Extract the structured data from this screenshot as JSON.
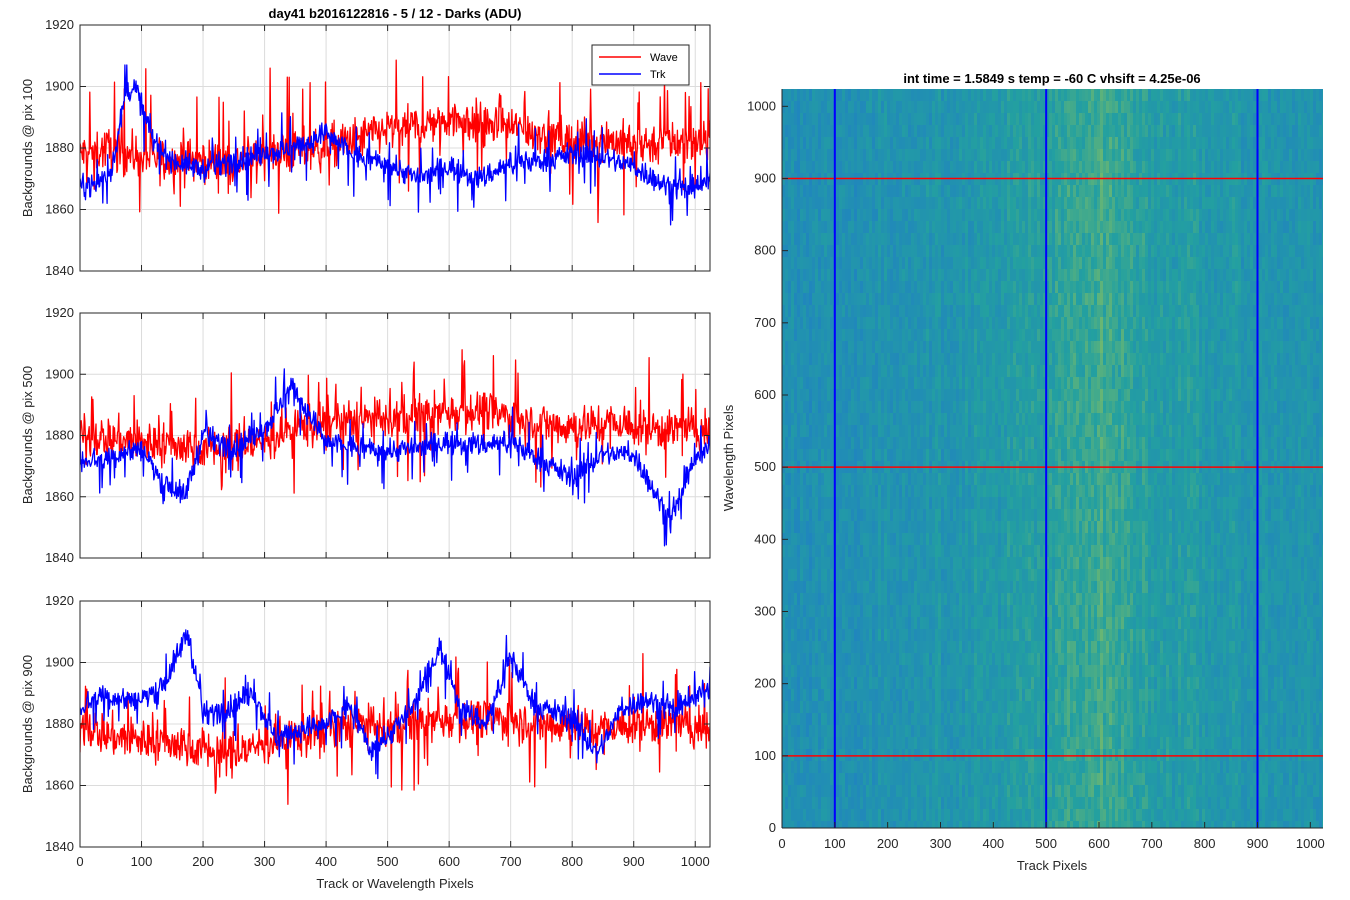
{
  "figure": {
    "colors": {
      "wave": "#ff0000",
      "trk": "#0000ff",
      "axis": "#262626",
      "grid": "#dcdcdc"
    }
  },
  "chart_data": [
    {
      "type": "line",
      "title": "day41 b2016122816 - 5 / 12 - Darks (ADU)",
      "xlabel": "",
      "ylabel": "Backgrounds @ pix 100",
      "xlim": [
        0,
        1024
      ],
      "ylim": [
        1840,
        1920
      ],
      "xticks": [
        0,
        100,
        200,
        300,
        400,
        500,
        600,
        700,
        800,
        900,
        1000
      ],
      "yticks": [
        1840,
        1860,
        1880,
        1900,
        1920
      ],
      "show_xtick_labels": false,
      "grid": true,
      "legend": {
        "location": "top-right",
        "entries": [
          "Wave",
          "Trk"
        ]
      },
      "series": [
        {
          "name": "Wave",
          "color": "#ff0000",
          "x": [
            0,
            50,
            100,
            150,
            200,
            250,
            300,
            350,
            400,
            450,
            500,
            550,
            600,
            650,
            700,
            750,
            800,
            850,
            900,
            950,
            1024
          ],
          "y": [
            1878,
            1880,
            1877,
            1876,
            1876,
            1875,
            1878,
            1879,
            1880,
            1883,
            1886,
            1887,
            1890,
            1888,
            1887,
            1885,
            1882,
            1883,
            1881,
            1882,
            1882
          ],
          "noise": 9,
          "spike": 22,
          "min_hint": 1849,
          "max_hint": 1918
        },
        {
          "name": "Trk",
          "color": "#0000ff",
          "x": [
            0,
            25,
            50,
            75,
            90,
            120,
            150,
            200,
            250,
            300,
            350,
            400,
            450,
            500,
            550,
            600,
            650,
            700,
            750,
            800,
            850,
            900,
            950,
            1000,
            1024
          ],
          "y": [
            1868,
            1868,
            1872,
            1898,
            1900,
            1882,
            1876,
            1873,
            1876,
            1878,
            1880,
            1885,
            1877,
            1875,
            1870,
            1874,
            1870,
            1875,
            1876,
            1878,
            1877,
            1874,
            1868,
            1866,
            1870
          ],
          "noise": 5,
          "spike": 12,
          "min_hint": 1855,
          "max_hint": 1907
        }
      ]
    },
    {
      "type": "line",
      "title": "",
      "xlabel": "",
      "ylabel": "Backgrounds @ pix 500",
      "xlim": [
        0,
        1024
      ],
      "ylim": [
        1840,
        1920
      ],
      "xticks": [
        0,
        100,
        200,
        300,
        400,
        500,
        600,
        700,
        800,
        900,
        1000
      ],
      "yticks": [
        1840,
        1860,
        1880,
        1900,
        1920
      ],
      "show_xtick_labels": false,
      "grid": true,
      "series": [
        {
          "name": "Wave",
          "color": "#ff0000",
          "x": [
            0,
            50,
            100,
            150,
            200,
            250,
            300,
            350,
            400,
            450,
            500,
            550,
            600,
            650,
            700,
            750,
            800,
            850,
            900,
            950,
            1024
          ],
          "y": [
            1880,
            1879,
            1878,
            1877,
            1876,
            1876,
            1878,
            1883,
            1884,
            1885,
            1885,
            1886,
            1888,
            1888,
            1886,
            1884,
            1883,
            1884,
            1883,
            1882,
            1882
          ],
          "noise": 9,
          "spike": 20,
          "min_hint": 1845,
          "max_hint": 1920
        },
        {
          "name": "Trk",
          "color": "#0000ff",
          "x": [
            0,
            50,
            100,
            130,
            170,
            200,
            250,
            300,
            345,
            400,
            450,
            500,
            550,
            600,
            650,
            700,
            750,
            800,
            850,
            900,
            960,
            1000,
            1024
          ],
          "y": [
            1872,
            1873,
            1876,
            1866,
            1860,
            1880,
            1876,
            1882,
            1896,
            1878,
            1876,
            1875,
            1876,
            1878,
            1877,
            1878,
            1872,
            1866,
            1874,
            1874,
            1852,
            1872,
            1876
          ],
          "noise": 5,
          "spike": 11,
          "min_hint": 1844,
          "max_hint": 1903
        }
      ]
    },
    {
      "type": "line",
      "title": "",
      "xlabel": "Track or Wavelength Pixels",
      "ylabel": "Backgrounds @ pix 900",
      "xlim": [
        0,
        1024
      ],
      "ylim": [
        1840,
        1920
      ],
      "xticks": [
        0,
        100,
        200,
        300,
        400,
        500,
        600,
        700,
        800,
        900,
        1000
      ],
      "yticks": [
        1840,
        1860,
        1880,
        1900,
        1920
      ],
      "show_xtick_labels": true,
      "grid": true,
      "series": [
        {
          "name": "Wave",
          "color": "#ff0000",
          "x": [
            0,
            50,
            100,
            150,
            200,
            250,
            300,
            350,
            400,
            450,
            500,
            550,
            600,
            650,
            700,
            750,
            800,
            850,
            900,
            950,
            1024
          ],
          "y": [
            1880,
            1876,
            1875,
            1874,
            1872,
            1870,
            1874,
            1876,
            1878,
            1880,
            1878,
            1880,
            1882,
            1881,
            1882,
            1880,
            1880,
            1878,
            1880,
            1880,
            1879
          ],
          "noise": 9,
          "spike": 20,
          "min_hint": 1848,
          "max_hint": 1913
        },
        {
          "name": "Trk",
          "color": "#0000ff",
          "x": [
            0,
            30,
            60,
            100,
            140,
            175,
            200,
            240,
            280,
            320,
            350,
            400,
            440,
            470,
            500,
            540,
            585,
            620,
            660,
            700,
            740,
            800,
            840,
            880,
            920,
            970,
            1024
          ],
          "y": [
            1885,
            1890,
            1888,
            1888,
            1894,
            1910,
            1883,
            1885,
            1890,
            1875,
            1878,
            1880,
            1886,
            1872,
            1876,
            1885,
            1905,
            1885,
            1880,
            1902,
            1886,
            1882,
            1870,
            1885,
            1888,
            1884,
            1892
          ],
          "noise": 5,
          "spike": 10,
          "min_hint": 1857,
          "max_hint": 1917
        }
      ]
    },
    {
      "type": "heatmap",
      "title": "int time = 1.5849 s    temp = -60 C    vhsift = 4.25e-06",
      "xlabel": "Track Pixels",
      "ylabel": "Wavelength Pixels",
      "xlim": [
        0,
        1024
      ],
      "ylim": [
        0,
        1024
      ],
      "xticks": [
        0,
        100,
        200,
        300,
        400,
        500,
        600,
        700,
        800,
        900,
        1000
      ],
      "yticks": [
        0,
        100,
        200,
        300,
        400,
        500,
        600,
        700,
        800,
        900,
        1000
      ],
      "colormap": "parula",
      "color_low": "#1f7bc9",
      "color_high": "#a6c94c",
      "vertical_markers": {
        "color": "#0000ff",
        "x": [
          100,
          500,
          900
        ]
      },
      "horizontal_markers": {
        "color": "#ff0000",
        "y": [
          100,
          500,
          900
        ]
      },
      "brightness_profile_x": [
        0,
        100,
        200,
        300,
        400,
        500,
        550,
        600,
        650,
        700,
        800,
        900,
        1024
      ],
      "brightness_profile": [
        0.3,
        0.28,
        0.33,
        0.36,
        0.4,
        0.47,
        0.56,
        0.62,
        0.53,
        0.46,
        0.4,
        0.36,
        0.34
      ]
    }
  ]
}
